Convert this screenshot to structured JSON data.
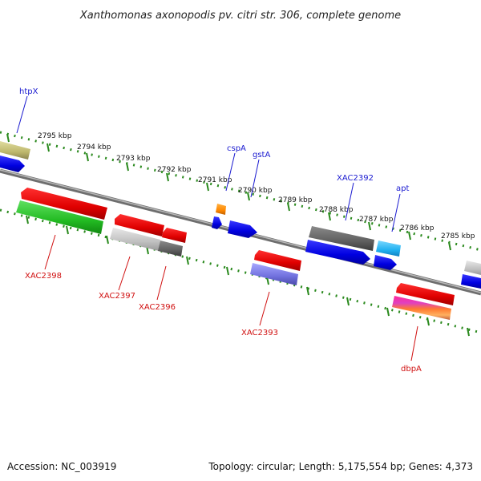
{
  "title": "Xanthomonas axonopodis pv. citri str. 306, complete genome",
  "accession": "Accession: NC_003919",
  "summary": "Topology: circular; Length: 5,175,554 bp; Genes: 4,373",
  "colors": {
    "backbone": "#8a8a8a",
    "tick_dots": "#2b8a1e",
    "top_label": "#1a1ad0",
    "bottom_label": "#d01010"
  },
  "ticks": [
    "2795 kbp",
    "2794 kbp",
    "2793 kbp",
    "2792 kbp",
    "2791 kbp",
    "2790 kbp",
    "2789 kbp",
    "2788 kbp",
    "2787 kbp",
    "2786 kbp",
    "2785 kbp"
  ],
  "top_labels": [
    "htpX",
    "cspA",
    "gstA",
    "XAC2392",
    "apt"
  ],
  "bottom_labels": [
    "XAC2398",
    "XAC2397",
    "XAC2396",
    "XAC2393",
    "dbpA"
  ]
}
